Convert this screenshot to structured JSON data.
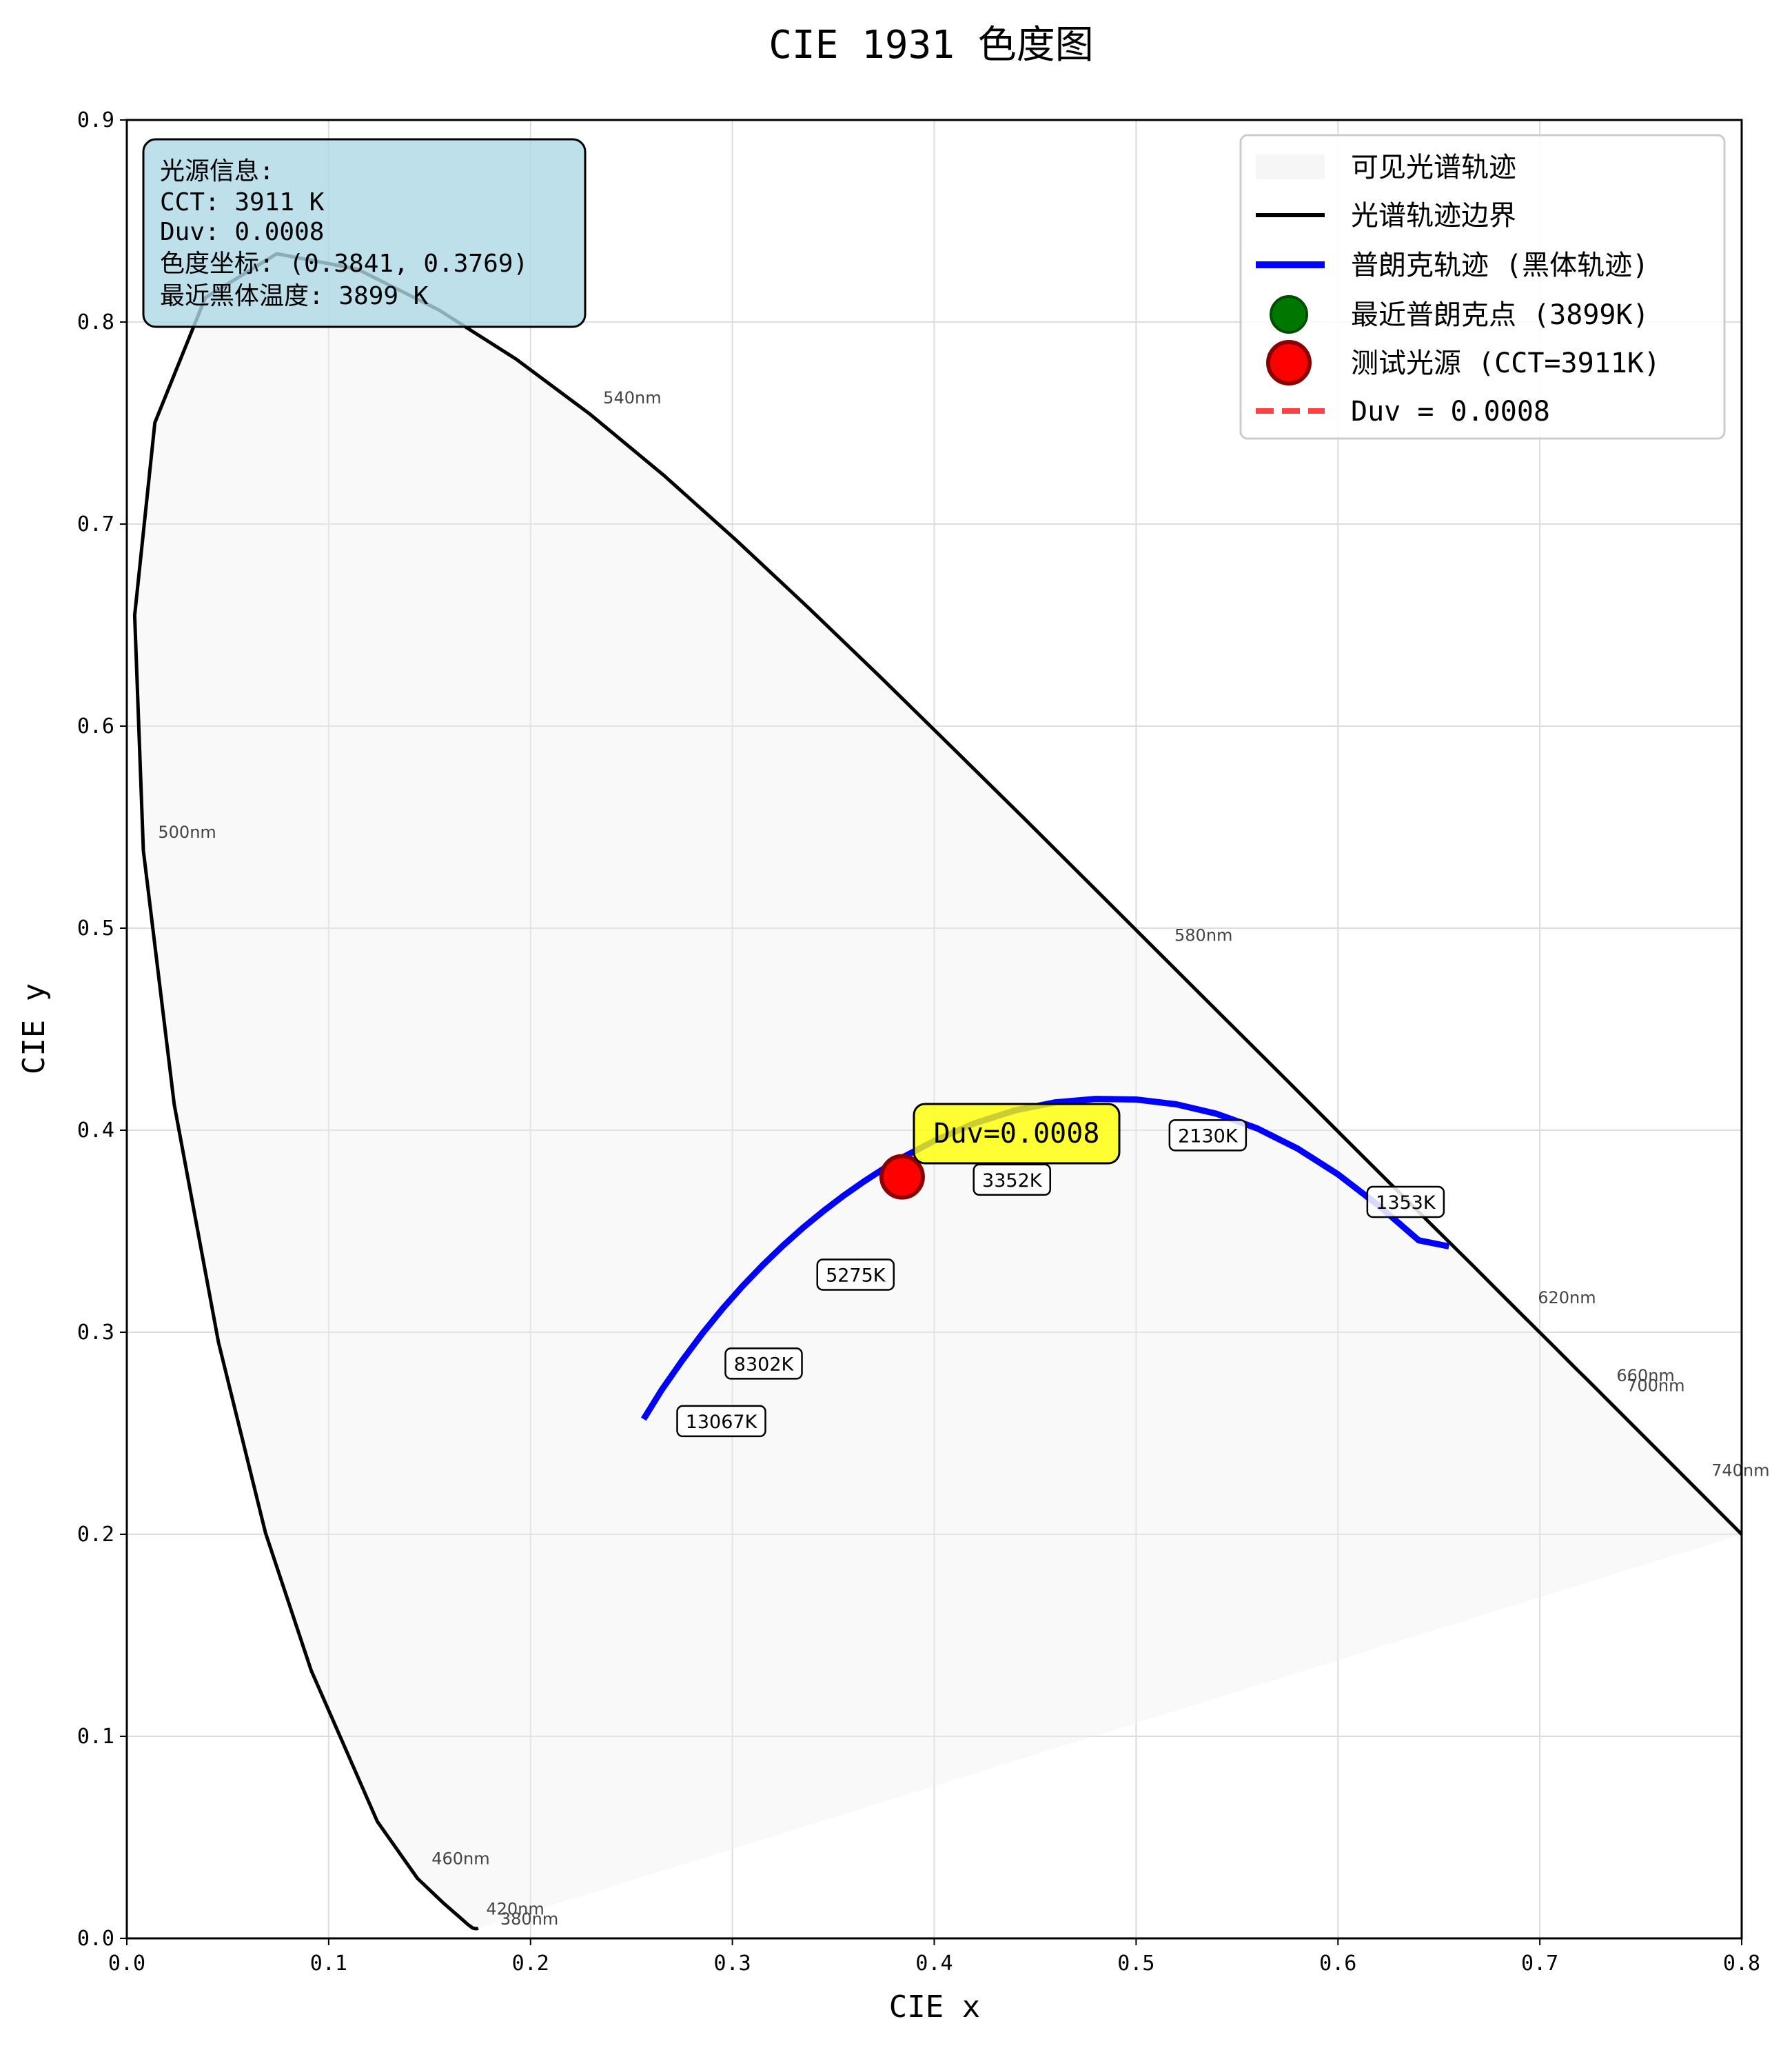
{
  "chart_data": {
    "type": "line",
    "title": "CIE 1931 色度图",
    "xlabel": "CIE x",
    "ylabel": "CIE y",
    "xlim": [
      0.0,
      0.8
    ],
    "ylim": [
      0.0,
      0.9
    ],
    "xticks": [
      0.0,
      0.1,
      0.2,
      0.3,
      0.4,
      0.5,
      0.6,
      0.7,
      0.8
    ],
    "yticks": [
      0.0,
      0.1,
      0.2,
      0.3,
      0.4,
      0.5,
      0.6,
      0.7,
      0.8,
      0.9
    ],
    "xtick_labels": [
      "0.0",
      "0.1",
      "0.2",
      "0.3",
      "0.4",
      "0.5",
      "0.6",
      "0.7",
      "0.8"
    ],
    "ytick_labels": [
      "0.0",
      "0.1",
      "0.2",
      "0.3",
      "0.4",
      "0.5",
      "0.6",
      "0.7",
      "0.8",
      "0.9"
    ],
    "grid": true,
    "legend_position": "top-right",
    "series": [
      {
        "name": "可见光谱轨迹",
        "kind": "fill",
        "color": "#f0f0f0",
        "x": [
          0.1741,
          0.1738,
          0.1733,
          0.1726,
          0.1714,
          0.1689,
          0.1644,
          0.1566,
          0.144,
          0.1241,
          0.0913,
          0.0687,
          0.0454,
          0.0235,
          0.0082,
          0.0039,
          0.0139,
          0.0389,
          0.0743,
          0.1142,
          0.1547,
          0.1929,
          0.2296,
          0.2658,
          0.3016,
          0.3373,
          0.3731,
          0.4087,
          0.4441,
          0.4788,
          0.5125,
          0.5448,
          0.5752,
          0.6029,
          0.627,
          0.6482,
          0.6658,
          0.6801,
          0.6915,
          0.7006,
          0.7079,
          0.714,
          0.719,
          0.723,
          0.726,
          0.7283,
          0.73,
          0.7311,
          0.732,
          0.7327,
          0.7334,
          0.734,
          0.7344,
          0.8
        ],
        "y": [
          0.005,
          0.0049,
          0.0048,
          0.0048,
          0.0051,
          0.0069,
          0.0109,
          0.0177,
          0.0297,
          0.0578,
          0.1327,
          0.2007,
          0.295,
          0.4127,
          0.5384,
          0.6548,
          0.7502,
          0.812,
          0.8338,
          0.8262,
          0.8059,
          0.7816,
          0.7543,
          0.7243,
          0.6923,
          0.6589,
          0.6245,
          0.5896,
          0.5547,
          0.5202,
          0.4866,
          0.4544,
          0.4242,
          0.3965,
          0.3725,
          0.3514,
          0.334,
          0.3197,
          0.3083,
          0.2993,
          0.292,
          0.2859,
          0.2809,
          0.277,
          0.274,
          0.2717,
          0.27,
          0.2689,
          0.268,
          0.2673,
          0.2666,
          0.266,
          0.2656,
          0.2
        ]
      },
      {
        "name": "光谱轨迹边界",
        "kind": "line",
        "color": "#000000",
        "x": [
          0.1741,
          0.1738,
          0.1733,
          0.1726,
          0.1714,
          0.1689,
          0.1644,
          0.1566,
          0.144,
          0.1241,
          0.0913,
          0.0687,
          0.0454,
          0.0235,
          0.0082,
          0.0039,
          0.0139,
          0.0389,
          0.0743,
          0.1142,
          0.1547,
          0.1929,
          0.2296,
          0.2658,
          0.3016,
          0.3373,
          0.3731,
          0.4087,
          0.4441,
          0.4788,
          0.5125,
          0.5448,
          0.5752,
          0.6029,
          0.627,
          0.6482,
          0.6658,
          0.6801,
          0.6915,
          0.7006,
          0.7079,
          0.714,
          0.719,
          0.723,
          0.726,
          0.7283,
          0.73,
          0.7311,
          0.732,
          0.7327,
          0.7334,
          0.734,
          0.7344,
          0.8
        ],
        "y": [
          0.005,
          0.0049,
          0.0048,
          0.0048,
          0.0051,
          0.0069,
          0.0109,
          0.0177,
          0.0297,
          0.0578,
          0.1327,
          0.2007,
          0.295,
          0.4127,
          0.5384,
          0.6548,
          0.7502,
          0.812,
          0.8338,
          0.8262,
          0.8059,
          0.7816,
          0.7543,
          0.7243,
          0.6923,
          0.6589,
          0.6245,
          0.5896,
          0.5547,
          0.5202,
          0.4866,
          0.4544,
          0.4242,
          0.3965,
          0.3725,
          0.3514,
          0.334,
          0.3197,
          0.3083,
          0.2993,
          0.292,
          0.2859,
          0.2809,
          0.277,
          0.274,
          0.2717,
          0.27,
          0.2689,
          0.268,
          0.2673,
          0.2666,
          0.266,
          0.2656,
          0.2
        ]
      },
      {
        "name": "普朗克轨迹 (黑体轨迹)",
        "kind": "line",
        "color": "#0000ff",
        "x": [
          0.256,
          0.265,
          0.275,
          0.285,
          0.295,
          0.305,
          0.315,
          0.325,
          0.335,
          0.345,
          0.355,
          0.365,
          0.375,
          0.385,
          0.4,
          0.42,
          0.44,
          0.46,
          0.48,
          0.5,
          0.52,
          0.54,
          0.56,
          0.58,
          0.6,
          0.62,
          0.64,
          0.655
        ],
        "y": [
          0.257,
          0.2715,
          0.2858,
          0.2992,
          0.3115,
          0.3228,
          0.3332,
          0.3428,
          0.3517,
          0.3599,
          0.3675,
          0.3745,
          0.381,
          0.3869,
          0.3947,
          0.4034,
          0.4098,
          0.4138,
          0.4155,
          0.4152,
          0.4128,
          0.4081,
          0.4009,
          0.3909,
          0.3782,
          0.3628,
          0.3455,
          0.3425
        ]
      },
      {
        "name": "最近普朗克点 (3899K)",
        "kind": "point",
        "color": "#007800",
        "x": [
          0.3845
        ],
        "y": [
          0.3768
        ]
      },
      {
        "name": "测试光源 (CCT=3911K)",
        "kind": "point",
        "color": "#ff0000",
        "x": [
          0.3841
        ],
        "y": [
          0.3769
        ]
      },
      {
        "name": "Duv = 0.0008",
        "kind": "dashed-line",
        "color": "#ff4040",
        "x": [
          0.3841,
          0.3845
        ],
        "y": [
          0.3769,
          0.3768
        ]
      }
    ],
    "wavelength_labels": [
      {
        "text": "380nm",
        "x": 0.185,
        "y": 0.0095
      },
      {
        "text": "420nm",
        "x": 0.178,
        "y": 0.0145
      },
      {
        "text": "460nm",
        "x": 0.151,
        "y": 0.0395
      },
      {
        "text": "500nm",
        "x": 0.0155,
        "y": 0.5475
      },
      {
        "text": "540nm",
        "x": 0.236,
        "y": 0.7625
      },
      {
        "text": "580nm",
        "x": 0.519,
        "y": 0.4965
      },
      {
        "text": "620nm",
        "x": 0.699,
        "y": 0.317
      },
      {
        "text": "660nm",
        "x": 0.738,
        "y": 0.2785
      },
      {
        "text": "700nm",
        "x": 0.743,
        "y": 0.2735
      },
      {
        "text": "740nm",
        "x": 0.785,
        "y": 0.2315
      }
    ],
    "cct_labels": [
      {
        "text": "13067K",
        "x": 0.2945,
        "y": 0.256
      },
      {
        "text": "8302K",
        "x": 0.3155,
        "y": 0.2845
      },
      {
        "text": "5275K",
        "x": 0.361,
        "y": 0.3285
      },
      {
        "text": "3352K",
        "x": 0.4385,
        "y": 0.3755
      },
      {
        "text": "2130K",
        "x": 0.5355,
        "y": 0.3975
      },
      {
        "text": "1353K",
        "x": 0.6335,
        "y": 0.3645
      }
    ],
    "duv_annotation": {
      "text": "Duv=0.0008",
      "x": 0.4385,
      "y": 0.3995
    }
  },
  "info_box": {
    "lines": [
      "光源信息:",
      "CCT: 3911 K",
      "Duv: 0.0008",
      "色度坐标: (0.3841, 0.3769)",
      "最近黑体温度: 3899 K"
    ],
    "fill": "#add8e6"
  }
}
